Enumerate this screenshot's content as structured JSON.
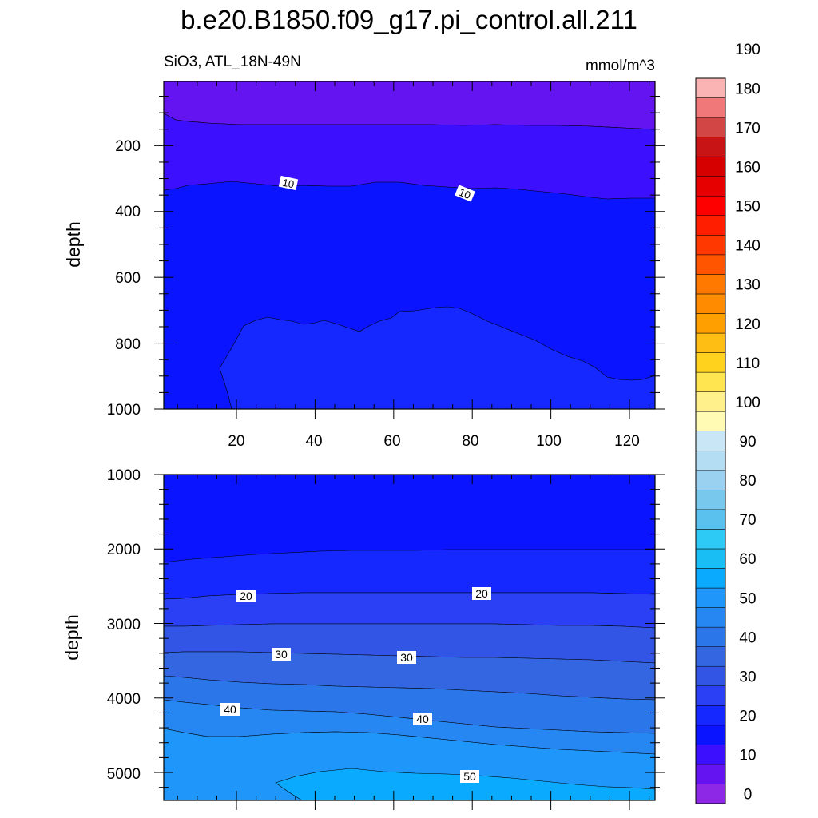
{
  "chart_data": {
    "type": "contour",
    "title": "b.e20.B1850.f09_g17.pi_control.all.211",
    "variable_label": "SiO3, ATL_18N-49N",
    "units_label": "mmol/m^3",
    "colorbar": {
      "tick_labels": [
        "0",
        "10",
        "20",
        "30",
        "40",
        "50",
        "60",
        "70",
        "80",
        "90",
        "100",
        "110",
        "120",
        "130",
        "140",
        "150",
        "160",
        "170",
        "180",
        "190"
      ],
      "colors": [
        "#8c28e6",
        "#6414f0",
        "#3c0fff",
        "#0a14ff",
        "#1428ff",
        "#2b40f5",
        "#3355e6",
        "#3366e0",
        "#2b77ea",
        "#2687f2",
        "#1e96fa",
        "#0aaaff",
        "#19bef5",
        "#2dcaf5",
        "#5ac1ee",
        "#78c8ee",
        "#9bd1f0",
        "#b4dcf2",
        "#c8e6f5",
        "#fffab4",
        "#fff08c",
        "#ffe650",
        "#ffd21e",
        "#ffbe14",
        "#ffa000",
        "#ff8c00",
        "#ff7800",
        "#ff5500",
        "#ff3700",
        "#ff1e00",
        "#ff0000",
        "#e60000",
        "#d70000",
        "#c81414",
        "#d24646",
        "#f07878",
        "#fab4b4"
      ]
    },
    "upper": {
      "xlabel": "",
      "ylabel": "depth",
      "x_ticks": [
        20,
        40,
        60,
        80,
        100,
        120
      ],
      "y_ticks": [
        200,
        400,
        600,
        800,
        1000
      ],
      "contour_labels": [
        "10",
        "10"
      ]
    },
    "lower": {
      "xlabel": "",
      "ylabel": "depth",
      "y_ticks": [
        1000,
        2000,
        3000,
        4000,
        5000
      ],
      "contour_labels": [
        "20",
        "20",
        "30",
        "30",
        "40",
        "40",
        "50"
      ]
    }
  }
}
